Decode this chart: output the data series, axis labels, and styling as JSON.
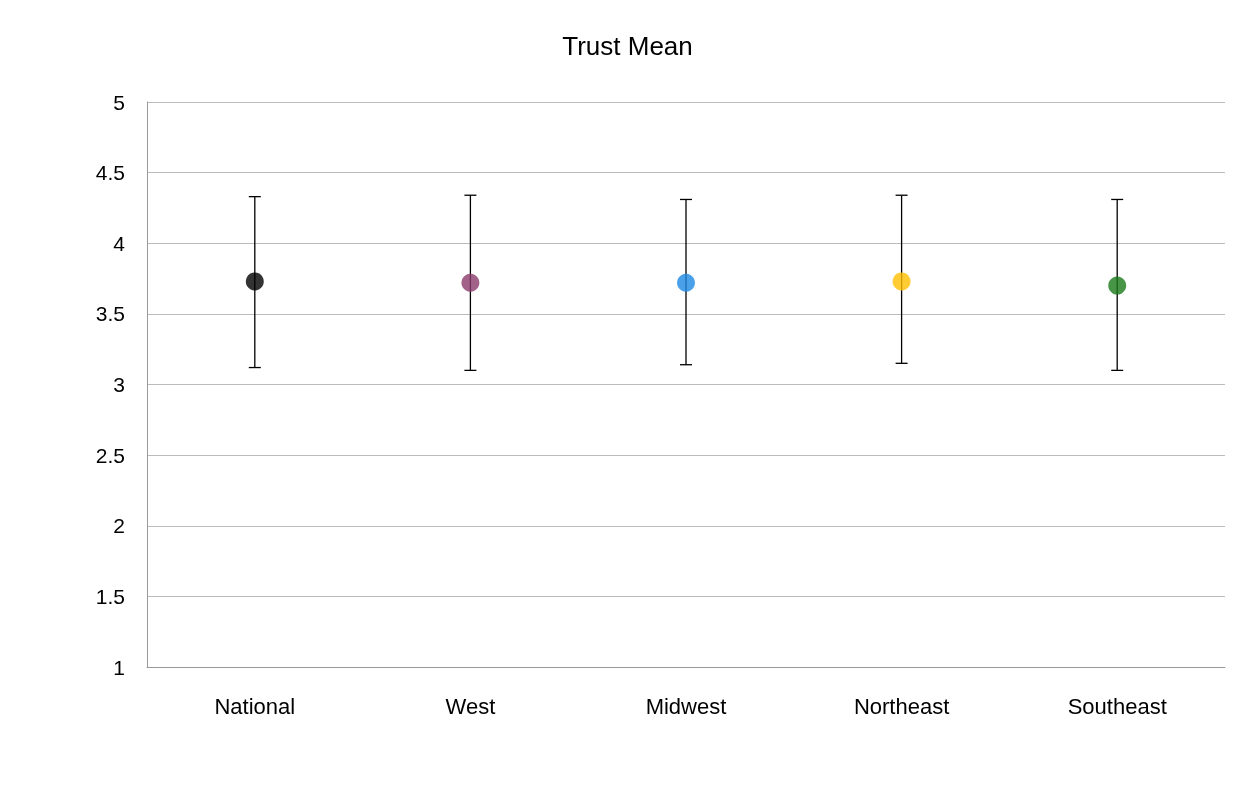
{
  "chart_data": {
    "type": "scatter",
    "title": "Trust Mean",
    "categories": [
      "National",
      "West",
      "Midwest",
      "Northeast",
      "Southeast"
    ],
    "values": [
      3.73,
      3.72,
      3.72,
      3.73,
      3.7
    ],
    "errors": [
      [
        3.12,
        4.33
      ],
      [
        3.1,
        4.34
      ],
      [
        3.14,
        4.31
      ],
      [
        3.15,
        4.34
      ],
      [
        3.1,
        4.31
      ]
    ],
    "colors": [
      "#000000",
      "#8b3a6b",
      "#1e88e5",
      "#ffc000",
      "#1a7a1a"
    ],
    "ylim": [
      1,
      5
    ],
    "yticks": [
      1,
      1.5,
      2,
      2.5,
      3,
      3.5,
      4,
      4.5,
      5
    ],
    "grid": "y",
    "marker": "circle"
  }
}
